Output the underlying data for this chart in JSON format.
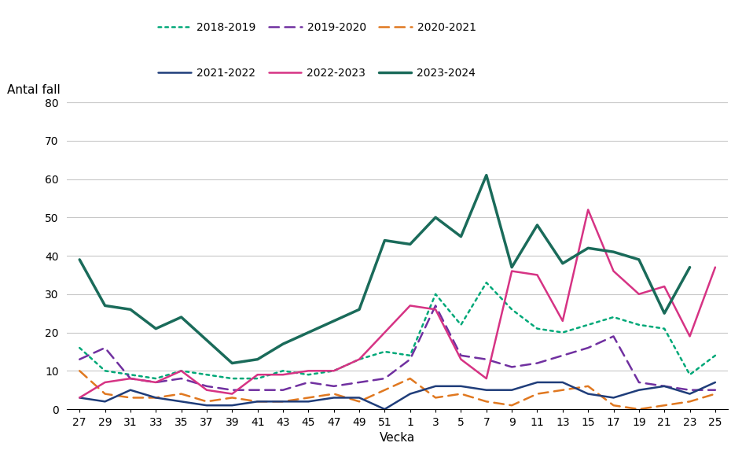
{
  "x_labels": [
    "27",
    "29",
    "31",
    "33",
    "35",
    "37",
    "39",
    "41",
    "43",
    "45",
    "47",
    "49",
    "51",
    "1",
    "3",
    "5",
    "7",
    "9",
    "11",
    "13",
    "15",
    "17",
    "19",
    "21",
    "23",
    "25"
  ],
  "series": {
    "2018-2019": {
      "color": "#00a878",
      "linestyle": "dotted",
      "linewidth": 1.8,
      "values": [
        16,
        10,
        9,
        8,
        10,
        9,
        8,
        8,
        10,
        9,
        10,
        13,
        15,
        14,
        30,
        22,
        33,
        26,
        21,
        20,
        22,
        24,
        22,
        21,
        9,
        14
      ]
    },
    "2019-2020": {
      "color": "#7030a0",
      "linestyle": "dashed",
      "linewidth": 1.8,
      "values": [
        13,
        16,
        8,
        7,
        8,
        6,
        5,
        5,
        5,
        7,
        6,
        7,
        8,
        13,
        27,
        14,
        13,
        11,
        12,
        14,
        16,
        19,
        7,
        6,
        5,
        5
      ]
    },
    "2020-2021": {
      "color": "#e07820",
      "linestyle": "dashed",
      "linewidth": 1.8,
      "values": [
        10,
        4,
        3,
        3,
        4,
        2,
        3,
        2,
        2,
        3,
        4,
        2,
        5,
        8,
        3,
        4,
        2,
        1,
        4,
        5,
        6,
        1,
        0,
        1,
        2,
        4
      ]
    },
    "2021-2022": {
      "color": "#1f3d7a",
      "linestyle": "solid",
      "linewidth": 1.8,
      "values": [
        3,
        2,
        5,
        3,
        2,
        1,
        1,
        2,
        2,
        2,
        3,
        3,
        0,
        4,
        6,
        6,
        5,
        5,
        7,
        7,
        4,
        3,
        5,
        6,
        4,
        7
      ]
    },
    "2022-2023": {
      "color": "#d63384",
      "linestyle": "solid",
      "linewidth": 1.8,
      "values": [
        3,
        7,
        8,
        7,
        10,
        5,
        4,
        9,
        9,
        10,
        10,
        13,
        20,
        27,
        26,
        13,
        8,
        36,
        35,
        23,
        52,
        36,
        30,
        32,
        19,
        37
      ]
    },
    "2023-2024": {
      "color": "#1a6b5a",
      "linestyle": "solid",
      "linewidth": 2.5,
      "values": [
        39,
        27,
        26,
        21,
        24,
        18,
        12,
        13,
        17,
        20,
        23,
        26,
        44,
        43,
        50,
        45,
        61,
        37,
        48,
        38,
        42,
        41,
        39,
        25,
        37,
        null
      ]
    }
  },
  "ylabel": "Antal fall",
  "xlabel": "Vecka",
  "ylim": [
    0,
    80
  ],
  "yticks": [
    0,
    10,
    20,
    30,
    40,
    50,
    60,
    70,
    80
  ],
  "legend_row1": [
    "2018-2019",
    "2019-2020",
    "2020-2021"
  ],
  "legend_row2": [
    "2021-2022",
    "2022-2023",
    "2023-2024"
  ],
  "background_color": "#ffffff",
  "grid_color": "#c8c8c8"
}
